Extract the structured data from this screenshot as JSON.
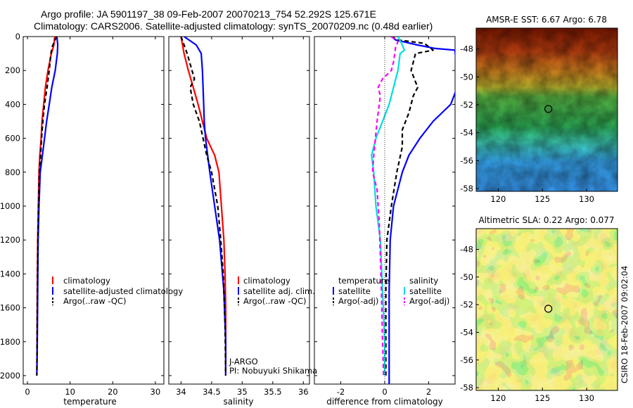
{
  "header": {
    "line1": "Argo profile: JA 5901197_38 09-Feb-2007 20070213_754 52.292S 125.671E",
    "line2": "Climatology: CARS2006. Satellite-adjusted climatology: synTS_20070209.nc (0.48d earlier)"
  },
  "chart_data": [
    {
      "type": "line",
      "xlabel": "temperature",
      "xlim": [
        -1,
        32
      ],
      "ylim": [
        2050,
        0
      ],
      "xticks": [
        0,
        10,
        20,
        30
      ],
      "yticks": [
        0,
        200,
        400,
        600,
        800,
        1000,
        1200,
        1400,
        1600,
        1800,
        2000
      ],
      "legend": {
        "position": "bottom-right",
        "entries": [
          "climatology",
          "satellite-adjusted climatology",
          "Argo(..raw -QC)"
        ]
      },
      "series": [
        {
          "name": "climatology",
          "color": "#ff0000",
          "style": "solid",
          "x": [
            6.4,
            6.2,
            5.6,
            4.8,
            4.2,
            3.8,
            3.4,
            3.2,
            2.9,
            2.7,
            2.55,
            2.4,
            2.3,
            2.25,
            2.2
          ],
          "y": [
            0,
            50,
            100,
            200,
            300,
            400,
            500,
            600,
            700,
            800,
            1000,
            1200,
            1500,
            1800,
            2000
          ]
        },
        {
          "name": "satellite-adjusted climatology",
          "color": "#0000ff",
          "style": "solid",
          "x": [
            6.9,
            7.1,
            7.0,
            6.5,
            5.7,
            5.1,
            4.5,
            4.0,
            3.5,
            3.0,
            2.7,
            2.5,
            2.4,
            2.3,
            2.2
          ],
          "y": [
            0,
            50,
            100,
            200,
            300,
            400,
            500,
            600,
            700,
            800,
            1000,
            1200,
            1500,
            1800,
            2000
          ]
        },
        {
          "name": "Argo(..raw -QC)",
          "color": "#000000",
          "style": "dashed",
          "x": [
            6.8,
            6.3,
            5.8,
            5.5,
            5.1,
            4.6,
            4.0,
            3.6,
            3.3,
            3.1,
            2.8,
            2.6,
            2.45,
            2.35,
            2.3,
            2.25,
            2.2
          ],
          "y": [
            0,
            30,
            60,
            100,
            200,
            300,
            400,
            500,
            600,
            700,
            800,
            1000,
            1200,
            1400,
            1600,
            1800,
            2000
          ]
        }
      ]
    },
    {
      "type": "line",
      "xlabel": "salinity",
      "xlim": [
        33.8,
        36.1
      ],
      "ylim": [
        2050,
        0
      ],
      "xticks": [
        34,
        34.5,
        35,
        35.5,
        36
      ],
      "xtick_labels": [
        "34",
        "34.5",
        "35",
        "35.5",
        "36"
      ],
      "legend": {
        "position": "bottom-right",
        "entries": [
          "climatology",
          "satellite adj. clim.",
          "Argo(..raw -QC)"
        ]
      },
      "annotation": [
        "J-ARGO",
        "PI: Nobuyuki Shikama"
      ],
      "series": [
        {
          "name": "climatology",
          "color": "#ff0000",
          "style": "solid",
          "x": [
            34.0,
            34.05,
            34.12,
            34.2,
            34.28,
            34.35,
            34.42,
            34.55,
            34.62,
            34.66,
            34.7,
            34.72,
            34.73,
            34.73
          ],
          "y": [
            0,
            100,
            200,
            300,
            400,
            500,
            600,
            700,
            800,
            1000,
            1200,
            1400,
            1600,
            2000
          ]
        },
        {
          "name": "satellite adj. clim.",
          "color": "#0000ff",
          "style": "solid",
          "x": [
            34.05,
            34.25,
            34.33,
            34.35,
            34.36,
            34.37,
            34.38,
            34.4,
            34.47,
            34.55,
            34.63,
            34.7,
            34.73,
            34.73
          ],
          "y": [
            0,
            50,
            100,
            200,
            300,
            400,
            500,
            600,
            800,
            1000,
            1200,
            1500,
            1800,
            2000
          ]
        },
        {
          "name": "Argo(..raw -QC)",
          "color": "#000000",
          "style": "dashed",
          "x": [
            34.0,
            34.1,
            34.18,
            34.22,
            34.15,
            34.2,
            34.25,
            34.3,
            34.36,
            34.42,
            34.5,
            34.55,
            34.6,
            34.65,
            34.69,
            34.72,
            34.73
          ],
          "y": [
            0,
            100,
            200,
            250,
            300,
            400,
            450,
            500,
            600,
            700,
            800,
            900,
            1000,
            1200,
            1400,
            1700,
            2000
          ]
        }
      ]
    },
    {
      "type": "line",
      "xlabel": "difference from climatology",
      "xlim": [
        -3.2,
        3.2
      ],
      "ylim": [
        2050,
        0
      ],
      "xticks": [
        -2,
        0,
        2
      ],
      "legend": {
        "position": "bottom",
        "groups": [
          {
            "title": "temperature",
            "entries": [
              "satellite",
              "Argo(-adj)"
            ]
          },
          {
            "title": "salinity",
            "entries": [
              "satellite",
              "Argo(-adj)"
            ]
          }
        ]
      },
      "series": [
        {
          "name": "satellite",
          "group": "temperature",
          "color": "#0000ff",
          "style": "solid",
          "x": [
            0.3,
            0.5,
            1.5,
            2.3,
            3.2,
            3.3,
            3.3,
            3.0,
            2.2,
            1.6,
            1.1,
            0.8,
            0.4,
            0.25,
            0.2,
            0.2,
            0.2,
            0.2
          ],
          "y": [
            0,
            20,
            50,
            70,
            80,
            250,
            300,
            400,
            500,
            600,
            700,
            800,
            1000,
            1200,
            1500,
            1800,
            2000,
            2050
          ]
        },
        {
          "name": "Argo(-adj)",
          "group": "temperature",
          "color": "#000000",
          "style": "dashed",
          "x": [
            0.3,
            0.6,
            1.8,
            2.2,
            1.4,
            1.2,
            1.5,
            1.3,
            1.1,
            0.8,
            0.8,
            0.55,
            0.3,
            0.1,
            0.05,
            0.05,
            0.05
          ],
          "y": [
            0,
            20,
            40,
            80,
            100,
            200,
            300,
            350,
            450,
            550,
            650,
            800,
            1000,
            1200,
            1500,
            1800,
            2000
          ]
        },
        {
          "name": "satellite",
          "group": "salinity",
          "color": "#00dddd",
          "style": "solid",
          "x": [
            0.6,
            0.8,
            0.9,
            0.7,
            0.6,
            0.4,
            0.2,
            -0.1,
            -0.4,
            -0.6,
            -0.5,
            -0.4,
            -0.2,
            -0.1,
            0.0,
            0.0
          ],
          "y": [
            0,
            50,
            80,
            100,
            200,
            300,
            400,
            500,
            600,
            700,
            800,
            1000,
            1200,
            1500,
            1800,
            2000
          ]
        },
        {
          "name": "Argo(-adj)",
          "group": "salinity",
          "color": "#ff00ff",
          "style": "dashed",
          "x": [
            0.3,
            0.6,
            0.5,
            0.4,
            0.3,
            -0.1,
            -0.3,
            -0.2,
            -0.35,
            -0.5,
            -0.55,
            -0.35,
            -0.25,
            -0.2,
            -0.15,
            -0.1,
            -0.05
          ],
          "y": [
            0,
            30,
            60,
            150,
            200,
            250,
            300,
            350,
            500,
            700,
            800,
            900,
            1100,
            1300,
            1500,
            1800,
            2000
          ]
        }
      ]
    },
    {
      "type": "heatmap",
      "title": "AMSR-E SST: 6.67 Argo: 6.78",
      "xlim": [
        117.5,
        133.5
      ],
      "ylim": [
        -58.2,
        -46.5
      ],
      "xticks": [
        120,
        125,
        130
      ],
      "yticks": [
        -48,
        -50,
        -52,
        -54,
        -56,
        -58
      ],
      "marker": {
        "lon": 125.671,
        "lat": -52.292
      },
      "colormap": [
        "#1a4cff",
        "#3ab0ff",
        "#40d8c0",
        "#2fb85a",
        "#6cc040",
        "#c8c030",
        "#e08a20",
        "#c04010",
        "#8a1a00"
      ]
    },
    {
      "type": "heatmap",
      "title": "Altimetric SLA: 0.22 Argo: 0.077",
      "xlim": [
        117.5,
        133.5
      ],
      "ylim": [
        -58.2,
        -46.5
      ],
      "xticks": [
        120,
        125,
        130
      ],
      "yticks": [
        -48,
        -50,
        -52,
        -54,
        -56,
        -58
      ],
      "marker": {
        "lon": 125.671,
        "lat": -52.292
      },
      "colormap": [
        "#2fa050",
        "#5cc850",
        "#a8d840",
        "#e8e030",
        "#f0a030",
        "#e07030"
      ]
    }
  ],
  "credit": "CSIRO 18-Feb-2007 09:02:04",
  "yaxis_min_label": "2000"
}
